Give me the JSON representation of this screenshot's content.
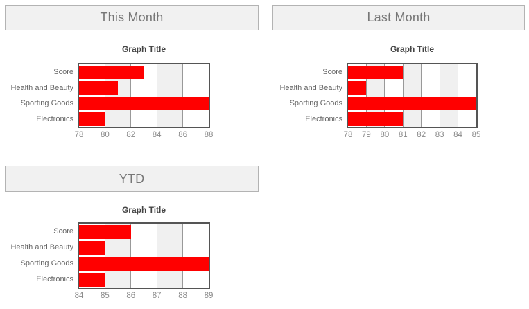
{
  "colors": {
    "bar": "#ff0000",
    "band": "#f0f0f0",
    "gridline": "#999999",
    "plot_border": "#555555",
    "header_bg": "#f1f1f1",
    "header_border": "#b3b3b3",
    "header_text": "#777777",
    "title_text": "#444444",
    "category_text": "#666666",
    "tick_text": "#8a8a8a"
  },
  "chart_data": [
    {
      "type": "bar",
      "orientation": "horizontal",
      "header": "This Month",
      "title": "Graph Title",
      "categories": [
        "Score",
        "Health and Beauty",
        "Sporting Goods",
        "Electronics"
      ],
      "values": [
        83,
        81,
        88,
        80
      ],
      "xlim": [
        78,
        88
      ],
      "ticks": [
        78,
        80,
        82,
        84,
        86,
        88
      ],
      "grid": true,
      "legend": "none",
      "background_bands": "alternating white/gray columns starting white"
    },
    {
      "type": "bar",
      "orientation": "horizontal",
      "header": "Last Month",
      "title": "Graph Title",
      "categories": [
        "Score",
        "Health and Beauty",
        "Sporting Goods",
        "Electronics"
      ],
      "values": [
        81,
        79,
        85,
        81
      ],
      "xlim": [
        78,
        85
      ],
      "ticks": [
        78,
        79,
        80,
        81,
        82,
        83,
        84,
        85
      ],
      "grid": true,
      "legend": "none",
      "background_bands": "alternating white/gray columns starting white"
    },
    {
      "type": "bar",
      "orientation": "horizontal",
      "header": "YTD",
      "title": "Graph Title",
      "categories": [
        "Score",
        "Health and Beauty",
        "Sporting Goods",
        "Electronics"
      ],
      "values": [
        86,
        85,
        89,
        85
      ],
      "xlim": [
        84,
        89
      ],
      "ticks": [
        84,
        85,
        86,
        87,
        88,
        89
      ],
      "grid": true,
      "legend": "none",
      "background_bands": "alternating white/gray columns starting white"
    }
  ]
}
